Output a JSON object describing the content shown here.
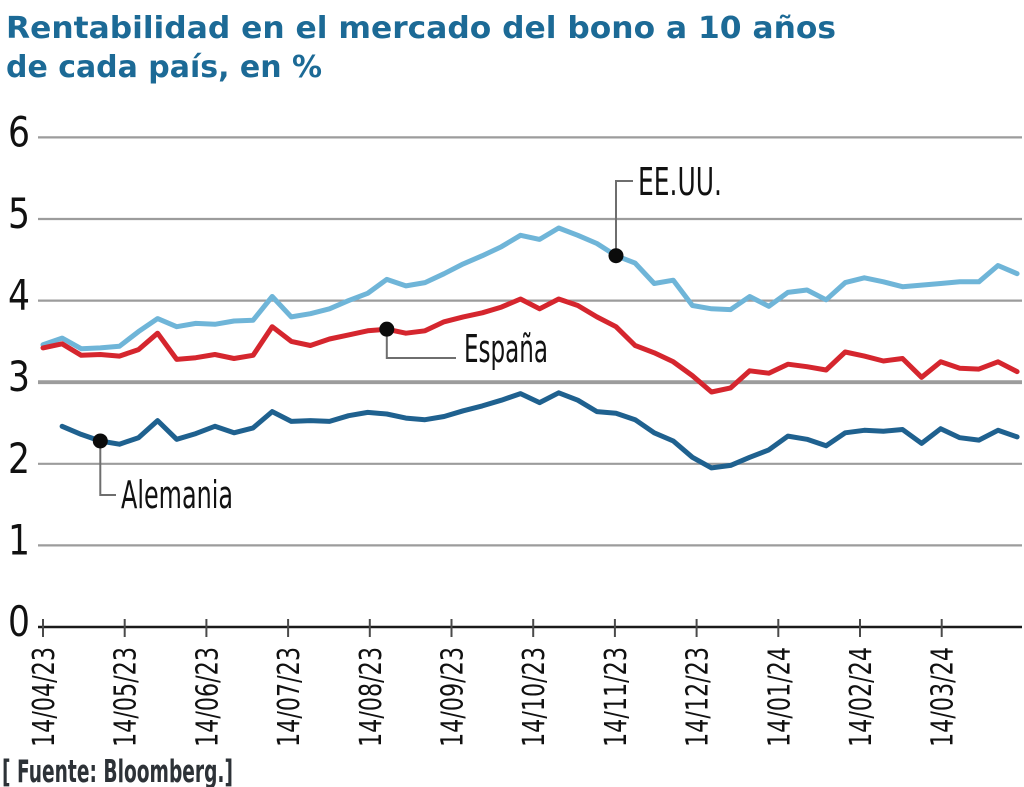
{
  "title": {
    "line1": "Rentabilidad en el mercado del bono a 10 años",
    "line2": "de cada país, en %",
    "color": "#1c6a96"
  },
  "source": "[ Fuente: Bloomberg.]",
  "colors": {
    "title": "#1c6a96",
    "source_text": "#2d3237",
    "grid": "#9c9c9c",
    "axis": "#1a1a1a",
    "tick": "#4a4a4a",
    "connector": "#6e6e6e",
    "dot": "#0b0b0b",
    "eeuu_line": "#6fb5d8",
    "espana_line": "#d5262e",
    "alemania_line": "#1f618f"
  },
  "chart_data": {
    "type": "line",
    "title": "Rentabilidad en el mercado del bono a 10 años de cada país, en %",
    "xlabel": "",
    "ylabel": "%",
    "ylim": [
      0,
      6
    ],
    "yticks": [
      0,
      1,
      2,
      3,
      4,
      5,
      6
    ],
    "grid": true,
    "legend_position": "none",
    "x_frequency": "weekly",
    "x_tick_labels": [
      "14/04/23",
      "14/05/23",
      "14/06/23",
      "14/07/23",
      "14/08/23",
      "14/09/23",
      "14/10/23",
      "14/11/23",
      "14/12/23",
      "14/01/24",
      "14/02/24",
      "14/03/24"
    ],
    "series": [
      {
        "name": "EE.UU.",
        "color": "#6fb5d8",
        "start_week": 0,
        "values": [
          3.46,
          3.54,
          3.41,
          3.42,
          3.44,
          3.62,
          3.78,
          3.68,
          3.72,
          3.71,
          3.75,
          3.76,
          4.05,
          3.8,
          3.84,
          3.9,
          4.0,
          4.09,
          4.26,
          4.18,
          4.22,
          4.33,
          4.45,
          4.55,
          4.66,
          4.8,
          4.75,
          4.89,
          4.8,
          4.7,
          4.55,
          4.46,
          4.21,
          4.25,
          3.94,
          3.9,
          3.89,
          4.05,
          3.93,
          4.1,
          4.13,
          4.01,
          4.22,
          4.28,
          4.23,
          4.17,
          4.19,
          4.21,
          4.23,
          4.23,
          4.43,
          4.33
        ]
      },
      {
        "name": "España",
        "color": "#d5262e",
        "start_week": 0,
        "values": [
          3.42,
          3.47,
          3.33,
          3.34,
          3.32,
          3.4,
          3.6,
          3.28,
          3.3,
          3.34,
          3.29,
          3.33,
          3.68,
          3.5,
          3.45,
          3.53,
          3.58,
          3.63,
          3.65,
          3.6,
          3.63,
          3.74,
          3.8,
          3.85,
          3.92,
          4.02,
          3.9,
          4.02,
          3.94,
          3.8,
          3.68,
          3.45,
          3.36,
          3.25,
          3.08,
          2.88,
          2.93,
          3.14,
          3.11,
          3.22,
          3.19,
          3.15,
          3.37,
          3.32,
          3.26,
          3.29,
          3.06,
          3.25,
          3.17,
          3.16,
          3.25,
          3.13
        ]
      },
      {
        "name": "Alemania",
        "color": "#1f618f",
        "start_week": 1,
        "values": [
          2.46,
          2.36,
          2.28,
          2.24,
          2.32,
          2.53,
          2.3,
          2.37,
          2.46,
          2.38,
          2.44,
          2.64,
          2.52,
          2.53,
          2.52,
          2.59,
          2.63,
          2.61,
          2.56,
          2.54,
          2.58,
          2.65,
          2.71,
          2.78,
          2.86,
          2.75,
          2.87,
          2.78,
          2.64,
          2.62,
          2.54,
          2.38,
          2.28,
          2.08,
          1.95,
          1.98,
          2.08,
          2.17,
          2.34,
          2.3,
          2.22,
          2.38,
          2.41,
          2.4,
          2.42,
          2.25,
          2.43,
          2.32,
          2.29,
          2.41,
          2.33
        ]
      }
    ],
    "annotations": [
      {
        "label": "EE.UU.",
        "series": "EE.UU.",
        "week": 30,
        "value": 4.55,
        "direction": "up"
      },
      {
        "label": "España",
        "series": "España",
        "week": 18,
        "value": 3.65,
        "direction": "down"
      },
      {
        "label": "Alemania",
        "series": "Alemania",
        "week": 3,
        "value": 2.28,
        "direction": "down"
      }
    ]
  }
}
